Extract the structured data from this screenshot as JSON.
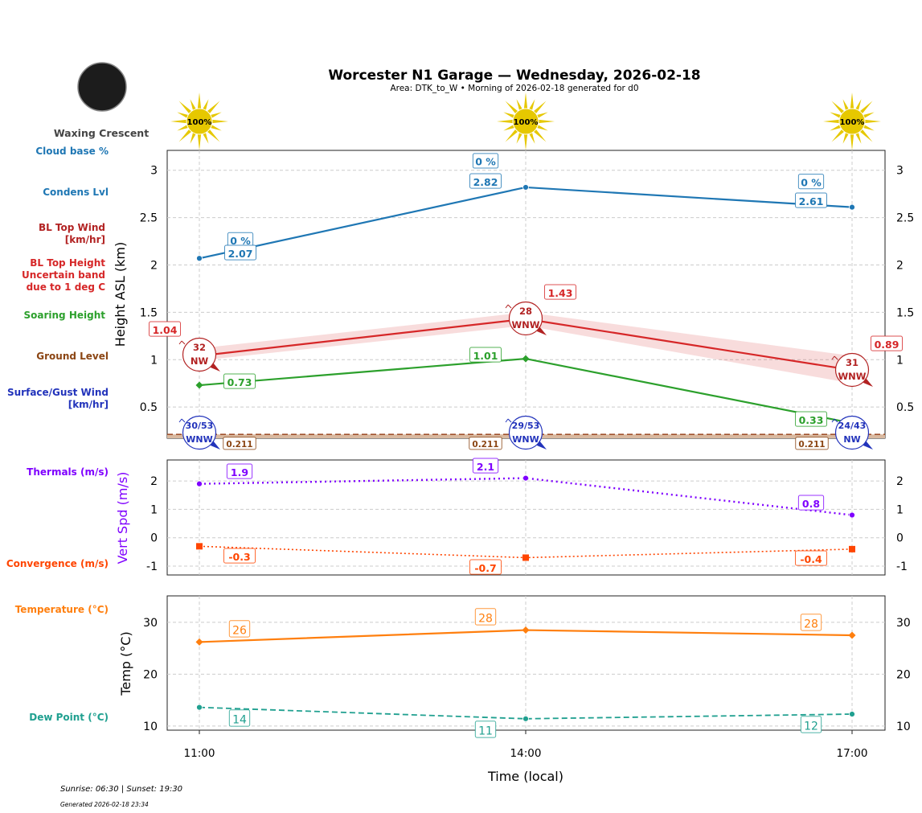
{
  "title": "Worcester N1 Garage — Wednesday, 2026-02-18",
  "subtitle": "Area: DTK_to_W • Morning of 2026-02-18 generated for d0",
  "moon_phase": "Waxing Crescent",
  "footer": {
    "sun": "Sunrise: 06:30 | Sunset: 19:30",
    "generated": "Generated 2026-02-18 23:34"
  },
  "row_labels": [
    {
      "text": [
        "Cloud base %"
      ],
      "color": "#1f77b4"
    },
    {
      "text": [
        "Condens Lvl"
      ],
      "color": "#1f77b4"
    },
    {
      "text": [
        "BL Top Wind",
        "[km/hr]"
      ],
      "color": "#b22222"
    },
    {
      "text": [
        "BL Top Height",
        "Uncertain band",
        "due to 1 deg C"
      ],
      "color": "#d62728"
    },
    {
      "text": [
        "Soaring Height"
      ],
      "color": "#2ca02c"
    },
    {
      "text": [
        "Ground Level"
      ],
      "color": "#8b4513"
    },
    {
      "text": [
        "Surface/Gust Wind",
        "[km/hr]"
      ],
      "color": "#2233bb"
    },
    {
      "text": [
        "Thermals (m/s)"
      ],
      "color": "#7f00ff"
    },
    {
      "text": [
        "Convergence (m/s)"
      ],
      "color": "#ff4500"
    },
    {
      "text": [
        "Temperature (°C)"
      ],
      "color": "#ff7f0e"
    },
    {
      "text": [
        "Dew Point (°C)"
      ],
      "color": "#20a090"
    }
  ],
  "chart_data": [
    {
      "type": "line",
      "ylabel": "Height ASL (km)",
      "x": [
        "11:00",
        "14:00",
        "17:00"
      ],
      "ylim": [
        0.17,
        3.21
      ],
      "yticks": [
        0.5,
        1.0,
        1.5,
        2.0,
        2.5,
        3.0
      ],
      "grid": true,
      "sun_icons": [
        "100%",
        "100%",
        "100%"
      ],
      "series": [
        {
          "key": "condens",
          "values": [
            2.07,
            2.82,
            2.61
          ],
          "labels": [
            "2.07",
            "2.82",
            "2.61"
          ],
          "color": "#1f77b4"
        },
        {
          "key": "cloudbase_pct",
          "labels": [
            "0 %",
            "0 %",
            "0 %"
          ],
          "color": "#1f77b4"
        },
        {
          "key": "bl_top",
          "values": [
            1.04,
            1.43,
            0.89
          ],
          "labels": [
            "1.04",
            "1.43",
            "0.89"
          ],
          "band_low": [
            0.99,
            1.36,
            0.75
          ],
          "band_high": [
            1.12,
            1.5,
            1.04
          ],
          "color": "#d62728"
        },
        {
          "key": "bl_wind",
          "speed": [
            "32",
            "28",
            "31"
          ],
          "dir": [
            "NW",
            "WNW",
            "WNW"
          ],
          "color": "#b22222"
        },
        {
          "key": "soaring",
          "values": [
            0.73,
            1.01,
            0.33
          ],
          "labels": [
            "0.73",
            "1.01",
            "0.33"
          ],
          "color": "#2ca02c"
        },
        {
          "key": "ground",
          "values": [
            0.211,
            0.211,
            0.211
          ],
          "labels": [
            "0.211",
            "0.211",
            "0.211"
          ],
          "color": "#8b4513"
        },
        {
          "key": "surface_wind",
          "speed": [
            "30/53",
            "29/53",
            "24/43"
          ],
          "dir": [
            "WNW",
            "WNW",
            "NW"
          ],
          "color": "#2233bb"
        }
      ]
    },
    {
      "type": "line",
      "ylabel": "Vert Spd (m/s)",
      "x": [
        "11:00",
        "14:00",
        "17:00"
      ],
      "ylim": [
        -1.31,
        2.74
      ],
      "yticks": [
        -1,
        0,
        1,
        2
      ],
      "grid": true,
      "series": [
        {
          "key": "thermals",
          "values": [
            1.9,
            2.1,
            0.8
          ],
          "labels": [
            "1.9",
            "2.1",
            "0.8"
          ],
          "color": "#7f00ff"
        },
        {
          "key": "convergence",
          "values": [
            -0.3,
            -0.7,
            -0.4
          ],
          "labels": [
            "-0.3",
            "-0.7",
            "-0.4"
          ],
          "color": "#ff4500"
        }
      ]
    },
    {
      "type": "line",
      "ylabel": "Temp (°C)",
      "xlabel": "Time (local)",
      "x": [
        "11:00",
        "14:00",
        "17:00"
      ],
      "ylim": [
        9.2,
        35.1
      ],
      "yticks": [
        10,
        20,
        30
      ],
      "grid": true,
      "series": [
        {
          "key": "temp",
          "values": [
            26.2,
            28.5,
            27.5
          ],
          "labels": [
            "26",
            "28",
            "28"
          ],
          "color": "#ff7f0e"
        },
        {
          "key": "dew",
          "values": [
            13.6,
            11.4,
            12.3
          ],
          "labels": [
            "14",
            "11",
            "12"
          ],
          "color": "#20a090"
        }
      ]
    }
  ]
}
